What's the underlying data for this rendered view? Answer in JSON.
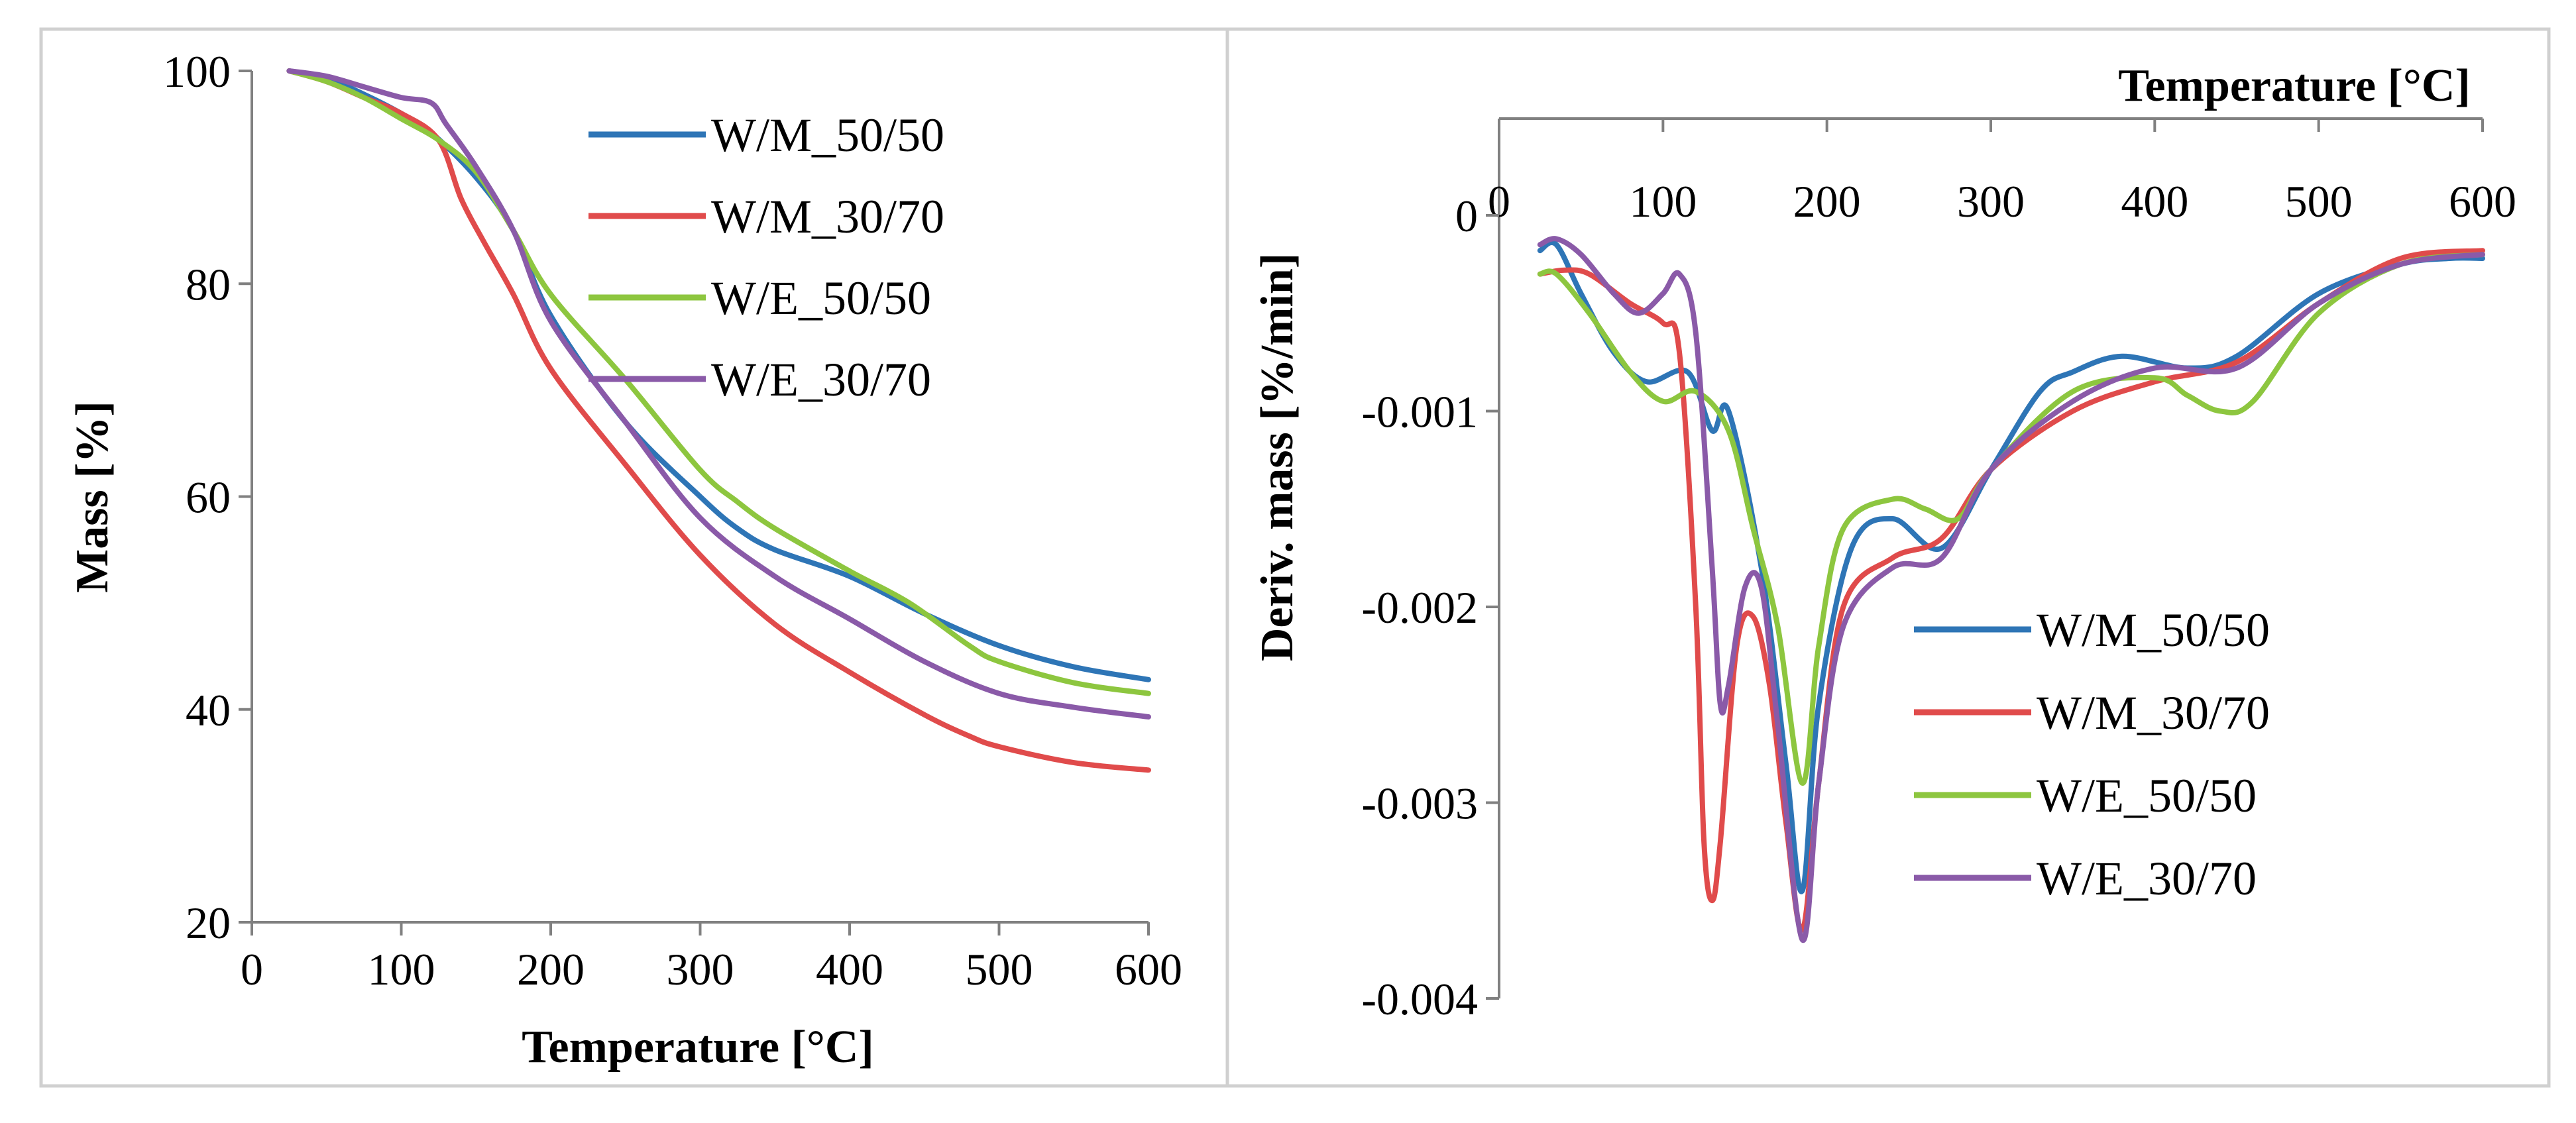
{
  "colors": {
    "W/M_50/50": "#2e75b6",
    "W/M_30/70": "#e04b4b",
    "W/E_50/50": "#8dc63f",
    "W/E_30/70": "#8a5aa8",
    "frame": "#d0d0d0",
    "axis": "#808080"
  },
  "chart_data": [
    {
      "type": "line",
      "title": "",
      "xlabel": "Temperature [°C]",
      "ylabel": "Mass [%]",
      "xlim": [
        0,
        600
      ],
      "ylim": [
        20,
        100
      ],
      "xticks": [
        "0",
        "100",
        "200",
        "300",
        "400",
        "500",
        "600"
      ],
      "yticks": [
        "20",
        "40",
        "60",
        "80",
        "100"
      ],
      "legend": [
        "W/M_50/50",
        "W/M_30/70",
        "W/E_50/50",
        "W/E_30/70"
      ],
      "series": [
        {
          "name": "W/M_50/50",
          "x": [
            25,
            50,
            75,
            100,
            120,
            150,
            175,
            200,
            250,
            300,
            325,
            350,
            400,
            450,
            500,
            550,
            600
          ],
          "y": [
            100,
            99.3,
            97.8,
            96,
            94.2,
            90,
            85,
            77,
            67,
            60,
            57,
            55,
            52.5,
            49,
            46,
            44,
            42.8
          ]
        },
        {
          "name": "W/M_30/70",
          "x": [
            25,
            50,
            75,
            100,
            125,
            140,
            155,
            175,
            200,
            250,
            300,
            350,
            400,
            450,
            480,
            500,
            550,
            600
          ],
          "y": [
            100,
            99,
            97.5,
            96,
            93.5,
            88,
            84,
            79,
            72,
            63,
            54.5,
            48,
            43.5,
            39.5,
            37.5,
            36.5,
            35,
            34.3
          ]
        },
        {
          "name": "W/E_50/50",
          "x": [
            25,
            50,
            75,
            100,
            125,
            150,
            175,
            200,
            250,
            300,
            325,
            350,
            400,
            440,
            480,
            500,
            550,
            600
          ],
          "y": [
            100,
            99,
            97.5,
            95.5,
            93.5,
            90.5,
            85,
            79,
            71,
            62.5,
            59.5,
            57,
            53,
            50,
            46,
            44.5,
            42.5,
            41.5
          ]
        },
        {
          "name": "W/E_30/70",
          "x": [
            25,
            50,
            75,
            100,
            120,
            130,
            150,
            175,
            200,
            250,
            300,
            350,
            400,
            450,
            500,
            550,
            600
          ],
          "y": [
            100,
            99.5,
            98.5,
            97.5,
            97,
            95,
            91,
            85,
            76.5,
            67,
            58,
            52.5,
            48.5,
            44.5,
            41.5,
            40.2,
            39.3
          ]
        }
      ]
    },
    {
      "type": "line",
      "title": "",
      "xlabel": "Temperature [°C]",
      "ylabel": "Deriv. mass [%/min]",
      "xlim": [
        0,
        600
      ],
      "ylim": [
        -0.004,
        0
      ],
      "xticks": [
        "0",
        "100",
        "200",
        "300",
        "400",
        "500",
        "600"
      ],
      "yticks": [
        "0",
        "-0.001",
        "-0.002",
        "-0.003",
        "-0.004"
      ],
      "legend": [
        "W/M_50/50",
        "W/M_30/70",
        "W/E_50/50",
        "W/E_30/70"
      ],
      "series": [
        {
          "name": "W/M_50/50",
          "x": [
            25,
            35,
            50,
            70,
            90,
            115,
            130,
            140,
            160,
            175,
            185,
            195,
            215,
            240,
            270,
            300,
            330,
            350,
            380,
            420,
            450,
            500,
            550,
            580,
            600
          ],
          "y": [
            -0.00018,
            -0.00015,
            -0.0004,
            -0.0007,
            -0.00085,
            -0.0008,
            -0.0011,
            -0.001,
            -0.0018,
            -0.0028,
            -0.00345,
            -0.0025,
            -0.0017,
            -0.00155,
            -0.0017,
            -0.0013,
            -0.0009,
            -0.0008,
            -0.00072,
            -0.00078,
            -0.00072,
            -0.0004,
            -0.00025,
            -0.00022,
            -0.00022
          ]
        },
        {
          "name": "W/M_30/70",
          "x": [
            25,
            40,
            55,
            80,
            100,
            110,
            120,
            125,
            130,
            135,
            145,
            155,
            165,
            175,
            185,
            195,
            210,
            240,
            270,
            300,
            350,
            400,
            450,
            500,
            550,
            600
          ],
          "y": [
            -0.0003,
            -0.00028,
            -0.0003,
            -0.00045,
            -0.00055,
            -0.0007,
            -0.002,
            -0.0032,
            -0.0035,
            -0.0032,
            -0.0022,
            -0.00205,
            -0.0024,
            -0.0031,
            -0.00365,
            -0.0029,
            -0.002,
            -0.00175,
            -0.00165,
            -0.0013,
            -0.001,
            -0.00085,
            -0.00075,
            -0.00045,
            -0.00022,
            -0.00018
          ]
        },
        {
          "name": "W/E_50/50",
          "x": [
            25,
            35,
            55,
            80,
            100,
            120,
            140,
            155,
            170,
            185,
            195,
            210,
            240,
            260,
            280,
            300,
            350,
            400,
            420,
            440,
            460,
            500,
            550,
            600
          ],
          "y": [
            -0.0003,
            -0.0003,
            -0.0005,
            -0.0008,
            -0.00095,
            -0.0009,
            -0.0011,
            -0.0016,
            -0.0021,
            -0.0029,
            -0.0022,
            -0.0016,
            -0.00145,
            -0.0015,
            -0.00155,
            -0.0013,
            -0.0009,
            -0.00083,
            -0.00092,
            -0.001,
            -0.00095,
            -0.0005,
            -0.00025,
            -0.0002
          ]
        },
        {
          "name": "W/E_30/70",
          "x": [
            25,
            35,
            50,
            70,
            85,
            100,
            110,
            120,
            130,
            135,
            140,
            150,
            160,
            170,
            185,
            195,
            210,
            240,
            270,
            300,
            350,
            400,
            450,
            500,
            550,
            600
          ],
          "y": [
            -0.00015,
            -0.00012,
            -0.0002,
            -0.0004,
            -0.0005,
            -0.0004,
            -0.0003,
            -0.0006,
            -0.0018,
            -0.0025,
            -0.0024,
            -0.0019,
            -0.0019,
            -0.0026,
            -0.0037,
            -0.0029,
            -0.0021,
            -0.0018,
            -0.00175,
            -0.0013,
            -0.00095,
            -0.00078,
            -0.00078,
            -0.00045,
            -0.00025,
            -0.0002
          ]
        }
      ]
    }
  ]
}
